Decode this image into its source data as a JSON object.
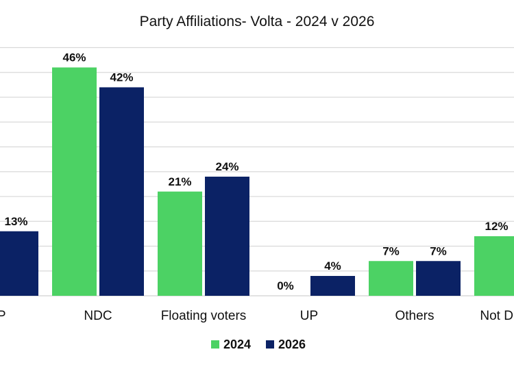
{
  "chart_data": {
    "type": "bar",
    "title": "Party Affiliations- Volta - 2024 v 2026",
    "xlabel": "",
    "ylabel": "",
    "ylim": [
      0,
      50
    ],
    "grid": true,
    "legend": {
      "position": "bottom"
    },
    "categories": [
      "NPP",
      "NDC",
      "Floating voters",
      "UP",
      "Others",
      "Not Disclosed"
    ],
    "series": [
      {
        "name": "2024",
        "color": "#4cd264",
        "values": [
          0,
          46,
          21,
          0,
          7,
          12
        ],
        "labels": [
          "",
          "46%",
          "21%",
          "0%",
          "7%",
          "12%"
        ]
      },
      {
        "name": "2026",
        "color": "#0b2265",
        "values": [
          13,
          42,
          24,
          4,
          7,
          0
        ],
        "labels": [
          "13%",
          "42%",
          "24%",
          "4%",
          "7%",
          ""
        ]
      }
    ]
  }
}
